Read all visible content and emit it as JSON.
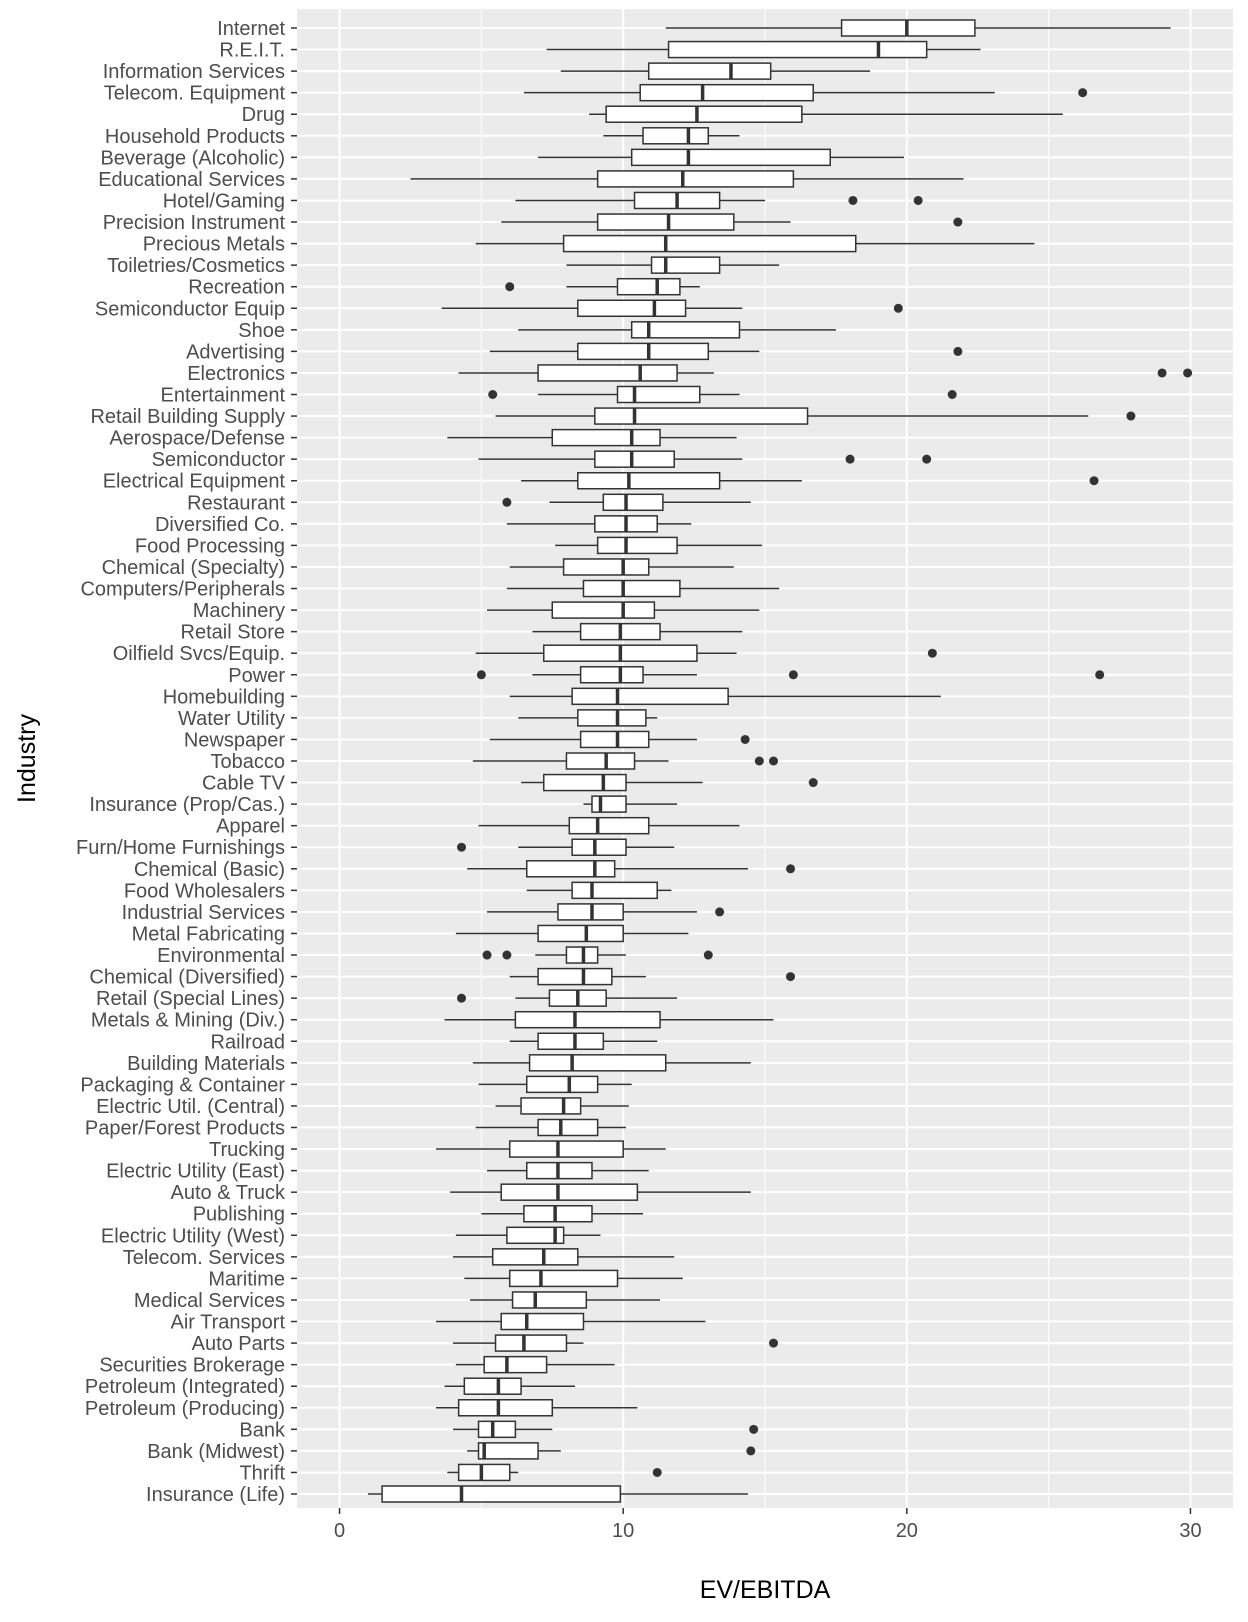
{
  "chart_data": {
    "type": "boxplot",
    "orientation": "horizontal",
    "xlabel": "EV/EBITDA",
    "ylabel": "Industry",
    "xlim": [
      -1.5,
      31.5
    ],
    "x_ticks": [
      0,
      10,
      20,
      30
    ],
    "grid": true,
    "colors": {
      "panel_background": "#ebebeb",
      "grid_major": "#ffffff",
      "box_fill": "#ffffff",
      "box_line": "#333333",
      "tick_text": "#4d4d4d",
      "axis_title": "#000000"
    },
    "categories": [
      "Internet",
      "R.E.I.T.",
      "Information Services",
      "Telecom. Equipment",
      "Drug",
      "Household Products",
      "Beverage (Alcoholic)",
      "Educational Services",
      "Hotel/Gaming",
      "Precision Instrument",
      "Precious Metals",
      "Toiletries/Cosmetics",
      "Recreation",
      "Semiconductor Equip",
      "Shoe",
      "Advertising",
      "Electronics",
      "Entertainment",
      "Retail Building Supply",
      "Aerospace/Defense",
      "Semiconductor",
      "Electrical Equipment",
      "Restaurant",
      "Diversified Co.",
      "Food Processing",
      "Chemical (Specialty)",
      "Computers/Peripherals",
      "Machinery",
      "Retail Store",
      "Oilfield Svcs/Equip.",
      "Power",
      "Homebuilding",
      "Water Utility",
      "Newspaper",
      "Tobacco",
      "Cable TV",
      "Insurance (Prop/Cas.)",
      "Apparel",
      "Furn/Home Furnishings",
      "Chemical (Basic)",
      "Food Wholesalers",
      "Industrial Services",
      "Metal Fabricating",
      "Environmental",
      "Chemical (Diversified)",
      "Retail (Special Lines)",
      "Metals & Mining (Div.)",
      "Railroad",
      "Building Materials",
      "Packaging & Container",
      "Electric Util. (Central)",
      "Paper/Forest Products",
      "Trucking",
      "Electric Utility (East)",
      "Auto & Truck",
      "Publishing",
      "Electric Utility (West)",
      "Telecom. Services",
      "Maritime",
      "Medical Services",
      "Air Transport",
      "Auto Parts",
      "Securities Brokerage",
      "Petroleum (Integrated)",
      "Petroleum (Producing)",
      "Bank",
      "Bank (Midwest)",
      "Thrift",
      "Insurance (Life)"
    ],
    "boxes": [
      {
        "whisker_low": 11.5,
        "q1": 17.7,
        "median": 20.0,
        "q3": 22.4,
        "whisker_high": 29.3,
        "outliers": []
      },
      {
        "whisker_low": 7.3,
        "q1": 11.6,
        "median": 19.0,
        "q3": 20.7,
        "whisker_high": 22.6,
        "outliers": []
      },
      {
        "whisker_low": 7.8,
        "q1": 10.9,
        "median": 13.8,
        "q3": 15.2,
        "whisker_high": 18.7,
        "outliers": []
      },
      {
        "whisker_low": 6.5,
        "q1": 10.6,
        "median": 12.8,
        "q3": 16.7,
        "whisker_high": 23.1,
        "outliers": [
          26.2
        ]
      },
      {
        "whisker_low": 8.8,
        "q1": 9.4,
        "median": 12.6,
        "q3": 16.3,
        "whisker_high": 25.5,
        "outliers": []
      },
      {
        "whisker_low": 9.3,
        "q1": 10.7,
        "median": 12.3,
        "q3": 13.0,
        "whisker_high": 14.1,
        "outliers": []
      },
      {
        "whisker_low": 7.0,
        "q1": 10.3,
        "median": 12.3,
        "q3": 17.3,
        "whisker_high": 19.9,
        "outliers": []
      },
      {
        "whisker_low": 2.5,
        "q1": 9.1,
        "median": 12.1,
        "q3": 16.0,
        "whisker_high": 22.0,
        "outliers": []
      },
      {
        "whisker_low": 6.2,
        "q1": 10.4,
        "median": 11.9,
        "q3": 13.4,
        "whisker_high": 15.0,
        "outliers": [
          18.1,
          20.4
        ]
      },
      {
        "whisker_low": 5.7,
        "q1": 9.1,
        "median": 11.6,
        "q3": 13.9,
        "whisker_high": 15.9,
        "outliers": [
          21.8
        ]
      },
      {
        "whisker_low": 4.8,
        "q1": 7.9,
        "median": 11.5,
        "q3": 18.2,
        "whisker_high": 24.5,
        "outliers": []
      },
      {
        "whisker_low": 8.0,
        "q1": 11.0,
        "median": 11.5,
        "q3": 13.4,
        "whisker_high": 15.5,
        "outliers": []
      },
      {
        "whisker_low": 8.0,
        "q1": 9.8,
        "median": 11.2,
        "q3": 12.0,
        "whisker_high": 12.7,
        "outliers": [
          6.0
        ]
      },
      {
        "whisker_low": 3.6,
        "q1": 8.4,
        "median": 11.1,
        "q3": 12.2,
        "whisker_high": 14.2,
        "outliers": [
          19.7
        ]
      },
      {
        "whisker_low": 6.3,
        "q1": 10.3,
        "median": 10.9,
        "q3": 14.1,
        "whisker_high": 17.5,
        "outliers": []
      },
      {
        "whisker_low": 5.3,
        "q1": 8.4,
        "median": 10.9,
        "q3": 13.0,
        "whisker_high": 14.8,
        "outliers": [
          21.8
        ]
      },
      {
        "whisker_low": 4.2,
        "q1": 7.0,
        "median": 10.6,
        "q3": 11.9,
        "whisker_high": 13.2,
        "outliers": [
          29.0,
          29.9
        ]
      },
      {
        "whisker_low": 7.0,
        "q1": 9.8,
        "median": 10.4,
        "q3": 12.7,
        "whisker_high": 14.1,
        "outliers": [
          5.4,
          21.6
        ]
      },
      {
        "whisker_low": 5.5,
        "q1": 9.0,
        "median": 10.4,
        "q3": 16.5,
        "whisker_high": 26.4,
        "outliers": [
          27.9
        ]
      },
      {
        "whisker_low": 3.8,
        "q1": 7.5,
        "median": 10.3,
        "q3": 11.3,
        "whisker_high": 14.0,
        "outliers": []
      },
      {
        "whisker_low": 4.9,
        "q1": 9.0,
        "median": 10.3,
        "q3": 11.8,
        "whisker_high": 14.2,
        "outliers": [
          18.0,
          20.7
        ]
      },
      {
        "whisker_low": 6.4,
        "q1": 8.4,
        "median": 10.2,
        "q3": 13.4,
        "whisker_high": 16.3,
        "outliers": [
          26.6
        ]
      },
      {
        "whisker_low": 7.4,
        "q1": 9.3,
        "median": 10.1,
        "q3": 11.4,
        "whisker_high": 14.5,
        "outliers": [
          5.9
        ]
      },
      {
        "whisker_low": 5.9,
        "q1": 9.0,
        "median": 10.1,
        "q3": 11.2,
        "whisker_high": 12.4,
        "outliers": []
      },
      {
        "whisker_low": 7.6,
        "q1": 9.1,
        "median": 10.1,
        "q3": 11.9,
        "whisker_high": 14.9,
        "outliers": []
      },
      {
        "whisker_low": 6.0,
        "q1": 7.9,
        "median": 10.0,
        "q3": 10.9,
        "whisker_high": 13.9,
        "outliers": []
      },
      {
        "whisker_low": 5.9,
        "q1": 8.6,
        "median": 10.0,
        "q3": 12.0,
        "whisker_high": 15.5,
        "outliers": []
      },
      {
        "whisker_low": 5.2,
        "q1": 7.5,
        "median": 10.0,
        "q3": 11.1,
        "whisker_high": 14.8,
        "outliers": []
      },
      {
        "whisker_low": 6.8,
        "q1": 8.5,
        "median": 9.9,
        "q3": 11.3,
        "whisker_high": 14.2,
        "outliers": []
      },
      {
        "whisker_low": 4.8,
        "q1": 7.2,
        "median": 9.9,
        "q3": 12.6,
        "whisker_high": 14.0,
        "outliers": [
          20.9
        ]
      },
      {
        "whisker_low": 6.8,
        "q1": 8.5,
        "median": 9.9,
        "q3": 10.7,
        "whisker_high": 12.6,
        "outliers": [
          5.0,
          16.0,
          26.8
        ]
      },
      {
        "whisker_low": 6.0,
        "q1": 8.2,
        "median": 9.8,
        "q3": 13.7,
        "whisker_high": 21.2,
        "outliers": []
      },
      {
        "whisker_low": 6.3,
        "q1": 8.4,
        "median": 9.8,
        "q3": 10.8,
        "whisker_high": 11.2,
        "outliers": []
      },
      {
        "whisker_low": 5.3,
        "q1": 8.5,
        "median": 9.8,
        "q3": 10.9,
        "whisker_high": 12.6,
        "outliers": [
          14.3
        ]
      },
      {
        "whisker_low": 4.7,
        "q1": 8.0,
        "median": 9.4,
        "q3": 10.4,
        "whisker_high": 11.6,
        "outliers": [
          14.8,
          15.3
        ]
      },
      {
        "whisker_low": 6.4,
        "q1": 7.2,
        "median": 9.3,
        "q3": 10.1,
        "whisker_high": 12.8,
        "outliers": [
          16.7
        ]
      },
      {
        "whisker_low": 8.6,
        "q1": 8.9,
        "median": 9.2,
        "q3": 10.1,
        "whisker_high": 11.9,
        "outliers": []
      },
      {
        "whisker_low": 4.9,
        "q1": 8.1,
        "median": 9.1,
        "q3": 10.9,
        "whisker_high": 14.1,
        "outliers": []
      },
      {
        "whisker_low": 6.3,
        "q1": 8.2,
        "median": 9.0,
        "q3": 10.1,
        "whisker_high": 11.8,
        "outliers": [
          4.3
        ]
      },
      {
        "whisker_low": 4.5,
        "q1": 6.6,
        "median": 9.0,
        "q3": 9.7,
        "whisker_high": 14.4,
        "outliers": [
          15.9
        ]
      },
      {
        "whisker_low": 6.6,
        "q1": 8.2,
        "median": 8.9,
        "q3": 11.2,
        "whisker_high": 11.7,
        "outliers": []
      },
      {
        "whisker_low": 5.2,
        "q1": 7.7,
        "median": 8.9,
        "q3": 10.0,
        "whisker_high": 12.6,
        "outliers": [
          13.4
        ]
      },
      {
        "whisker_low": 4.1,
        "q1": 7.0,
        "median": 8.7,
        "q3": 10.0,
        "whisker_high": 12.3,
        "outliers": []
      },
      {
        "whisker_low": 6.9,
        "q1": 8.0,
        "median": 8.6,
        "q3": 9.1,
        "whisker_high": 10.1,
        "outliers": [
          5.2,
          5.9,
          13.0
        ]
      },
      {
        "whisker_low": 6.0,
        "q1": 7.0,
        "median": 8.6,
        "q3": 9.6,
        "whisker_high": 10.8,
        "outliers": [
          15.9
        ]
      },
      {
        "whisker_low": 6.2,
        "q1": 7.4,
        "median": 8.4,
        "q3": 9.4,
        "whisker_high": 11.9,
        "outliers": [
          4.3
        ]
      },
      {
        "whisker_low": 3.7,
        "q1": 6.2,
        "median": 8.3,
        "q3": 11.3,
        "whisker_high": 15.3,
        "outliers": []
      },
      {
        "whisker_low": 6.0,
        "q1": 7.0,
        "median": 8.3,
        "q3": 9.3,
        "whisker_high": 11.2,
        "outliers": []
      },
      {
        "whisker_low": 4.7,
        "q1": 6.7,
        "median": 8.2,
        "q3": 11.5,
        "whisker_high": 14.5,
        "outliers": []
      },
      {
        "whisker_low": 4.9,
        "q1": 6.6,
        "median": 8.1,
        "q3": 9.1,
        "whisker_high": 10.3,
        "outliers": []
      },
      {
        "whisker_low": 5.5,
        "q1": 6.4,
        "median": 7.9,
        "q3": 8.5,
        "whisker_high": 10.2,
        "outliers": []
      },
      {
        "whisker_low": 4.8,
        "q1": 7.0,
        "median": 7.8,
        "q3": 9.1,
        "whisker_high": 10.1,
        "outliers": []
      },
      {
        "whisker_low": 3.4,
        "q1": 6.0,
        "median": 7.7,
        "q3": 10.0,
        "whisker_high": 11.5,
        "outliers": []
      },
      {
        "whisker_low": 5.2,
        "q1": 6.6,
        "median": 7.7,
        "q3": 8.9,
        "whisker_high": 10.9,
        "outliers": []
      },
      {
        "whisker_low": 3.9,
        "q1": 5.7,
        "median": 7.7,
        "q3": 10.5,
        "whisker_high": 14.5,
        "outliers": []
      },
      {
        "whisker_low": 5.0,
        "q1": 6.5,
        "median": 7.6,
        "q3": 8.9,
        "whisker_high": 10.7,
        "outliers": []
      },
      {
        "whisker_low": 4.1,
        "q1": 5.9,
        "median": 7.6,
        "q3": 7.9,
        "whisker_high": 9.2,
        "outliers": []
      },
      {
        "whisker_low": 4.0,
        "q1": 5.4,
        "median": 7.2,
        "q3": 8.4,
        "whisker_high": 11.8,
        "outliers": []
      },
      {
        "whisker_low": 4.4,
        "q1": 6.0,
        "median": 7.1,
        "q3": 9.8,
        "whisker_high": 12.1,
        "outliers": []
      },
      {
        "whisker_low": 4.6,
        "q1": 6.1,
        "median": 6.9,
        "q3": 8.7,
        "whisker_high": 11.3,
        "outliers": []
      },
      {
        "whisker_low": 3.4,
        "q1": 5.7,
        "median": 6.6,
        "q3": 8.6,
        "whisker_high": 12.9,
        "outliers": []
      },
      {
        "whisker_low": 4.0,
        "q1": 5.5,
        "median": 6.5,
        "q3": 8.0,
        "whisker_high": 8.6,
        "outliers": [
          15.3
        ]
      },
      {
        "whisker_low": 4.1,
        "q1": 5.1,
        "median": 5.9,
        "q3": 7.3,
        "whisker_high": 9.7,
        "outliers": []
      },
      {
        "whisker_low": 3.7,
        "q1": 4.4,
        "median": 5.6,
        "q3": 6.4,
        "whisker_high": 8.3,
        "outliers": []
      },
      {
        "whisker_low": 3.4,
        "q1": 4.2,
        "median": 5.6,
        "q3": 7.5,
        "whisker_high": 10.5,
        "outliers": []
      },
      {
        "whisker_low": 4.0,
        "q1": 4.9,
        "median": 5.4,
        "q3": 6.2,
        "whisker_high": 7.5,
        "outliers": [
          14.6
        ]
      },
      {
        "whisker_low": 4.5,
        "q1": 4.9,
        "median": 5.1,
        "q3": 7.0,
        "whisker_high": 7.8,
        "outliers": [
          14.5
        ]
      },
      {
        "whisker_low": 3.8,
        "q1": 4.2,
        "median": 5.0,
        "q3": 6.0,
        "whisker_high": 6.3,
        "outliers": [
          11.2
        ]
      },
      {
        "whisker_low": 1.0,
        "q1": 1.5,
        "median": 4.3,
        "q3": 9.9,
        "whisker_high": 14.4,
        "outliers": []
      }
    ]
  }
}
